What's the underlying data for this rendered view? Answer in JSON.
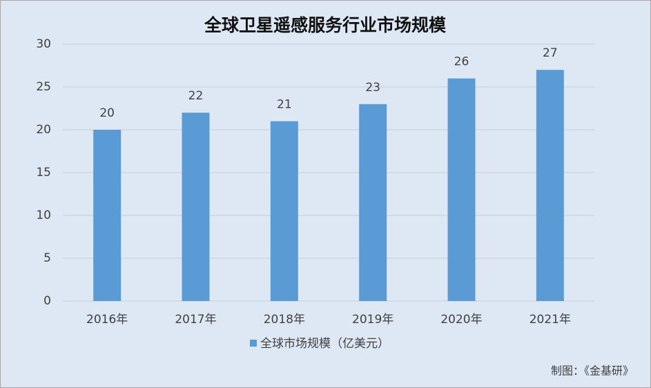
{
  "chart_data": {
    "type": "bar",
    "title": "全球卫星遥感服务行业市场规模",
    "categories": [
      "2016年",
      "2017年",
      "2018年",
      "2019年",
      "2020年",
      "2021年"
    ],
    "series": [
      {
        "name": "全球市场规模（亿美元）",
        "color": "#5b9bd5",
        "values": [
          20,
          22,
          21,
          23,
          26,
          27
        ]
      }
    ],
    "ylim": [
      0,
      30
    ],
    "yticks": [
      0,
      5,
      10,
      15,
      20,
      25,
      30
    ],
    "grid": true,
    "legend": "bottom",
    "source": "制图：《金基研》"
  }
}
